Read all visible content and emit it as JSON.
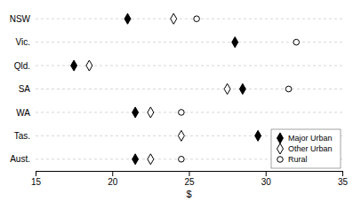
{
  "chart_data": {
    "type": "dot",
    "orientation": "horizontal",
    "categories": [
      "NSW",
      "Vic.",
      "Qld.",
      "SA",
      "WA",
      "Tas.",
      "Aust."
    ],
    "series": [
      {
        "name": "Major Urban",
        "color": "#000000",
        "marker": "diamond",
        "values": [
          21.0,
          28.0,
          17.5,
          28.5,
          21.5,
          29.5,
          21.5
        ]
      },
      {
        "name": "Other Urban",
        "color": "#000000",
        "marker": "diamond-open",
        "values": [
          24.0,
          null,
          18.5,
          27.5,
          22.5,
          24.5,
          22.5
        ]
      },
      {
        "name": "Rural",
        "color": "#000000",
        "marker": "circle-open",
        "values": [
          25.5,
          32.0,
          null,
          31.5,
          24.5,
          null,
          24.5
        ]
      }
    ],
    "xlabel": "$",
    "xlim": [
      15,
      35
    ],
    "xticks": [
      15,
      20,
      25,
      30,
      35
    ],
    "grid": true,
    "legend": "bottom-right"
  }
}
